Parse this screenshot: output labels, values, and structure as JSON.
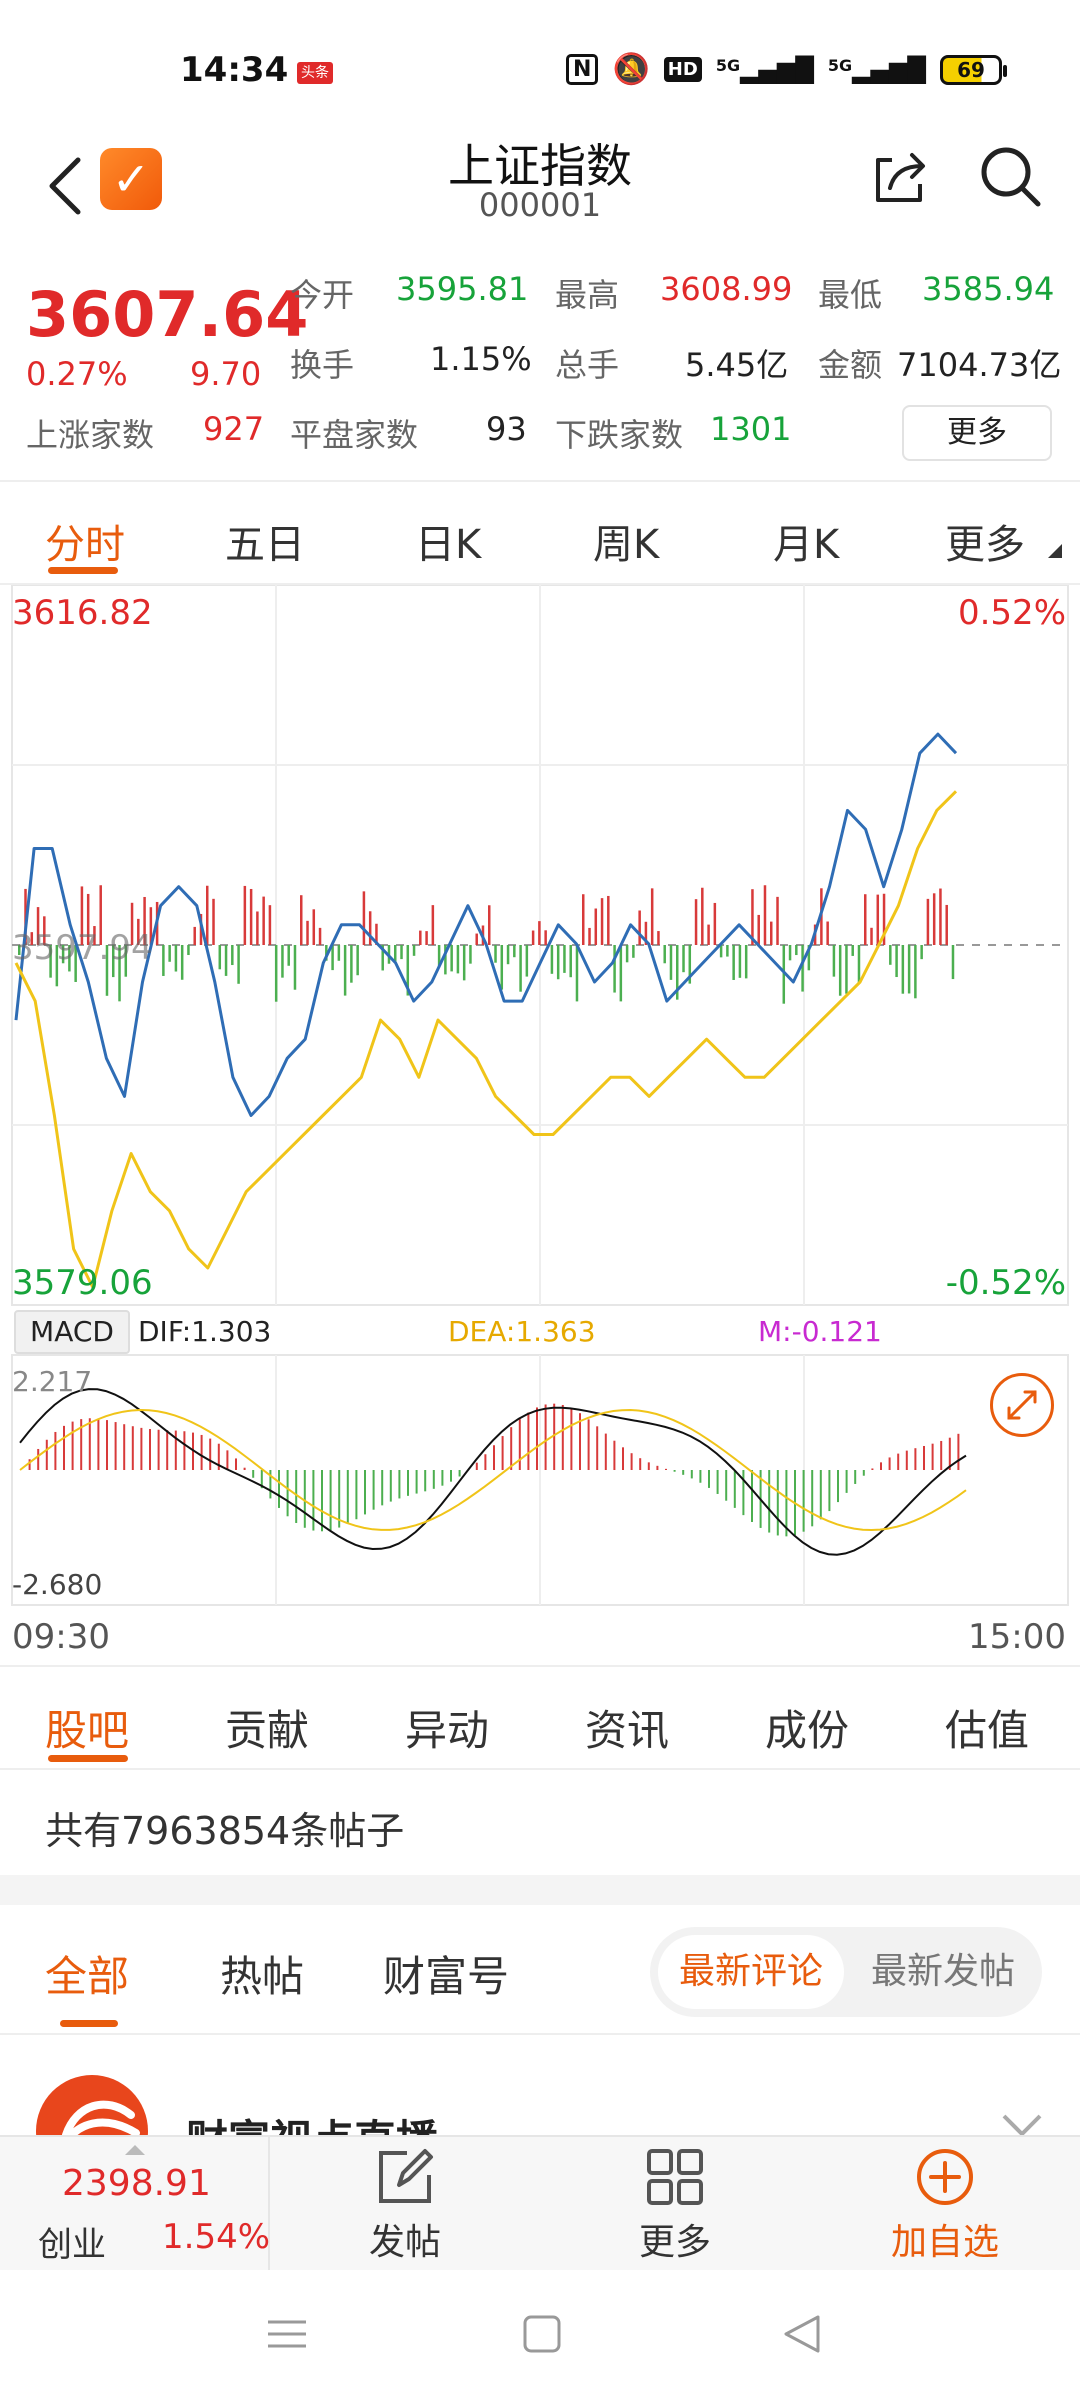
{
  "status_bar": {
    "time": "14:34",
    "news_badge": "头条",
    "network": "5G",
    "battery": "69",
    "icons": [
      "nfc-icon",
      "mute-icon",
      "hd-icon",
      "signal-icon",
      "signal-icon",
      "battery-icon"
    ]
  },
  "header": {
    "title": "上证指数",
    "code": "000001"
  },
  "quote": {
    "price": "3607.64",
    "change_pct": "0.27%",
    "change": "9.70",
    "open_label": "今开",
    "open": "3595.81",
    "high_label": "最高",
    "high": "3608.99",
    "low_label": "最低",
    "low": "3585.94",
    "turnover_rate_label": "换手",
    "turnover_rate": "1.15%",
    "volume_label": "总手",
    "volume": "5.45亿",
    "amount_label": "金额",
    "amount": "7104.73亿",
    "up_label": "上涨家数",
    "up": "927",
    "flat_label": "平盘家数",
    "flat": "93",
    "down_label": "下跌家数",
    "down": "1301",
    "more": "更多"
  },
  "chart_tabs": [
    "分时",
    "五日",
    "日K",
    "周K",
    "月K",
    "更多"
  ],
  "chart": {
    "price_high": "3616.82",
    "price_low": "3579.06",
    "pct_high": "0.52%",
    "pct_low": "-0.52%",
    "ref_price": "3597.94",
    "macd_label": "MACD",
    "dif": "DIF:1.303",
    "dea": "DEA:1.363",
    "m": "M:-0.121",
    "macd_high": "2.217",
    "macd_low": "-2.680",
    "time_start": "09:30",
    "time_end": "15:00"
  },
  "chart_data": {
    "type": "line",
    "ylim": [
      3579.06,
      3616.82
    ],
    "series": [
      {
        "color": "#2f6db5",
        "values": [
          3594,
          3603,
          3603,
          3599,
          3596,
          3592,
          3590,
          3596,
          3600,
          3601,
          3600,
          3596,
          3591,
          3589,
          3590,
          3592,
          3593,
          3597,
          3599,
          3599,
          3598,
          3597,
          3595,
          3596,
          3598,
          3600,
          3598,
          3595,
          3595,
          3597,
          3599,
          3598,
          3596,
          3597,
          3599,
          3598,
          3595,
          3596,
          3597,
          3598,
          3599,
          3598,
          3597,
          3596,
          3598,
          3601,
          3605,
          3604,
          3601,
          3604,
          3608,
          3609,
          3608
        ]
      },
      {
        "color": "#f0c419",
        "values": [
          3597,
          3595,
          3589,
          3582,
          3580,
          3584,
          3587,
          3585,
          3584,
          3582,
          3581,
          3583,
          3585,
          3586,
          3587,
          3588,
          3589,
          3590,
          3591,
          3594,
          3593,
          3591,
          3594,
          3593,
          3592,
          3590,
          3589,
          3588,
          3588,
          3589,
          3590,
          3591,
          3591,
          3590,
          3591,
          3592,
          3593,
          3592,
          3591,
          3591,
          3592,
          3593,
          3594,
          3595,
          3596,
          3598,
          3600,
          3603,
          3605,
          3606
        ]
      }
    ]
  },
  "info_tabs": [
    "股吧",
    "贡献",
    "异动",
    "资讯",
    "成份",
    "估值"
  ],
  "post_count": "共有7963854条帖子",
  "sub_tabs": [
    "全部",
    "热帖",
    "财富号"
  ],
  "sort_options": [
    "最新评论",
    "最新发帖"
  ],
  "feed": {
    "title": "财富视点直播"
  },
  "bottom_bar": {
    "index_value": "2398.91",
    "index_name": "创业",
    "index_change": "1.54%",
    "post": "发帖",
    "more": "更多",
    "add": "加自选"
  }
}
